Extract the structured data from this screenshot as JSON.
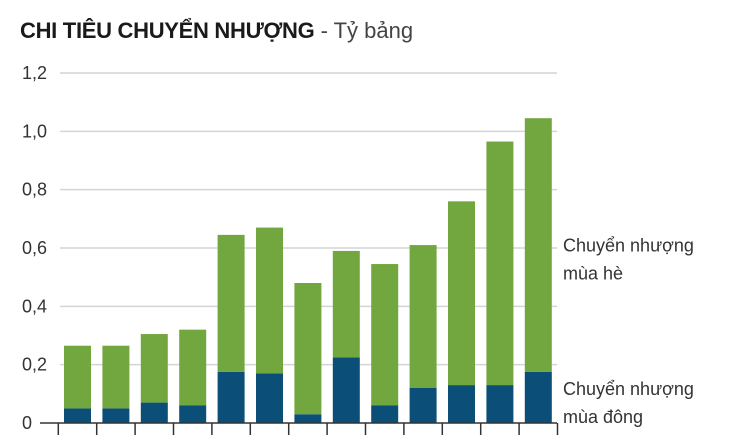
{
  "chart_data": {
    "type": "bar",
    "stacked": true,
    "title": "CHI TIÊU CHUYỂN NHƯỢNG",
    "subtitle": "- Tỷ bảng",
    "ylim": [
      0,
      1.2
    ],
    "y_ticks": [
      "0",
      "0,2",
      "0,4",
      "0,6",
      "0,8",
      "1,0",
      "1,2"
    ],
    "y_tick_values": [
      0,
      0.2,
      0.4,
      0.6,
      0.8,
      1.0,
      1.2
    ],
    "grid": true,
    "legend_position": "right",
    "series": [
      {
        "name": "Chuyển nhượng mùa đông",
        "label_lines": [
          "Chuyển nhượng",
          "mùa đông"
        ],
        "color": "#0b4f79",
        "values": [
          0.05,
          0.05,
          0.07,
          0.06,
          0.175,
          0.17,
          0.03,
          0.225,
          0.06,
          0.12,
          0.13,
          0.13,
          0.175
        ]
      },
      {
        "name": "Chuyển nhượng mùa hè",
        "label_lines": [
          "Chuyển nhượng",
          "mùa hè"
        ],
        "color": "#72a63f",
        "values": [
          0.215,
          0.215,
          0.235,
          0.26,
          0.47,
          0.5,
          0.45,
          0.365,
          0.485,
          0.49,
          0.63,
          0.835,
          0.87
        ]
      }
    ]
  }
}
